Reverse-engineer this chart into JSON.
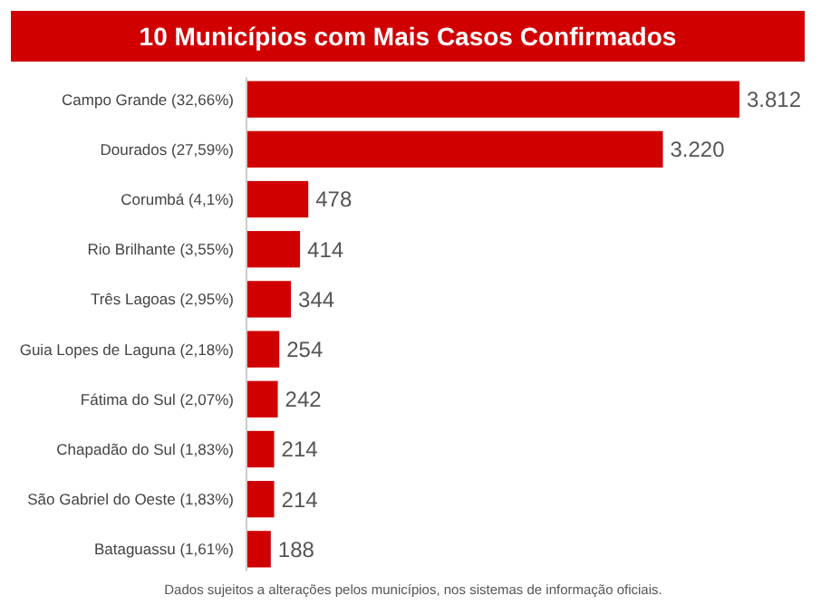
{
  "chart_data": {
    "type": "bar",
    "orientation": "horizontal",
    "title": "10 Municípios com Mais Casos Confirmados",
    "categories": [
      "Campo Grande (32,66%)",
      "Dourados (27,59%)",
      "Corumbá (4,1%)",
      "Rio Brilhante (3,55%)",
      "Três Lagoas (2,95%)",
      "Guia Lopes de Laguna (2,18%)",
      "Fátima do Sul (2,07%)",
      "Chapadão do Sul (1,83%)",
      "São Gabriel do Oeste (1,83%)",
      "Bataguassu (1,61%)"
    ],
    "values": [
      3812,
      3220,
      478,
      414,
      344,
      254,
      242,
      214,
      214,
      188
    ],
    "value_labels": [
      "3.812",
      "3.220",
      "478",
      "414",
      "344",
      "254",
      "242",
      "214",
      "214",
      "188"
    ],
    "color": "#d00000",
    "annotations": [
      "Dados sujeitos a alterações pelos municípios, nos sistemas de informação oficiais."
    ]
  }
}
